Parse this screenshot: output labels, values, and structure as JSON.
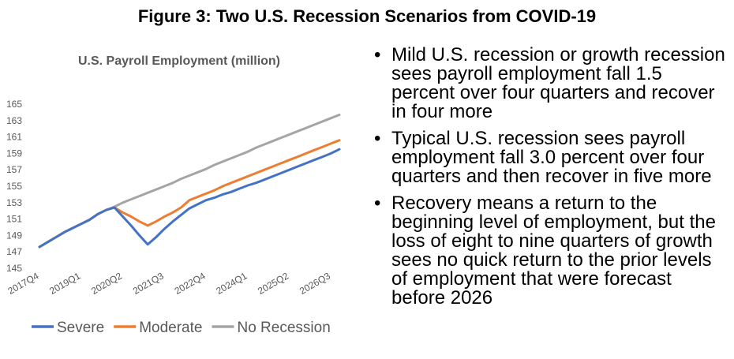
{
  "figure_title": "Figure 3: Two U.S. Recession Scenarios from COVID-19",
  "bullets": [
    "Mild U.S. recession or growth recession sees payroll employment fall 1.5 percent over four quarters and recover in four more",
    "Typical U.S. recession sees payroll employment fall 3.0 percent over four quarters and then recover in five more",
    "Recovery means a return to the beginning level of employment, but the loss of eight to nine quarters of growth sees no quick return to the prior levels of employment that were forecast before 2026"
  ],
  "chart_data": {
    "type": "line",
    "title": "U.S. Payroll Employment (million)",
    "xlabel": "",
    "ylabel": "",
    "ylim": [
      145,
      165
    ],
    "yticks": [
      145,
      147,
      149,
      151,
      153,
      155,
      157,
      159,
      161,
      163,
      165
    ],
    "x": [
      "2017Q4",
      "2018Q1",
      "2018Q2",
      "2018Q3",
      "2018Q4",
      "2019Q1",
      "2019Q2",
      "2019Q3",
      "2019Q4",
      "2020Q1",
      "2020Q2",
      "2020Q3",
      "2020Q4",
      "2021Q1",
      "2021Q2",
      "2021Q3",
      "2021Q4",
      "2022Q1",
      "2022Q2",
      "2022Q3",
      "2022Q4",
      "2023Q1",
      "2023Q2",
      "2023Q3",
      "2023Q4",
      "2024Q1",
      "2024Q2",
      "2024Q3",
      "2024Q4",
      "2025Q1",
      "2025Q2",
      "2025Q3",
      "2025Q4",
      "2026Q1",
      "2026Q2",
      "2026Q3",
      "2026Q4"
    ],
    "xticks": [
      "2017Q4",
      "2019Q1",
      "2020Q2",
      "2021Q3",
      "2022Q4",
      "2024Q1",
      "2025Q2",
      "2026Q3"
    ],
    "grid": false,
    "legend": "bottom",
    "series": [
      {
        "name": "Severe",
        "color": "#4472C4",
        "values": [
          147.6,
          148.2,
          148.8,
          149.4,
          149.9,
          150.4,
          150.9,
          151.6,
          152.1,
          152.4,
          151.3,
          150.2,
          149.0,
          147.9,
          148.8,
          149.8,
          150.7,
          151.5,
          152.3,
          152.8,
          153.3,
          153.6,
          154.0,
          154.3,
          154.7,
          155.1,
          155.4,
          155.8,
          156.2,
          156.6,
          157.0,
          157.4,
          157.8,
          158.2,
          158.6,
          159.0,
          159.5
        ]
      },
      {
        "name": "Moderate",
        "color": "#ED7D31",
        "values": [
          147.6,
          148.2,
          148.8,
          149.4,
          149.9,
          150.4,
          150.9,
          151.6,
          152.1,
          152.4,
          151.8,
          151.3,
          150.7,
          150.2,
          150.7,
          151.3,
          151.8,
          152.4,
          153.3,
          153.7,
          154.1,
          154.5,
          155.0,
          155.4,
          155.8,
          156.2,
          156.6,
          157.0,
          157.4,
          157.8,
          158.2,
          158.6,
          159.0,
          159.4,
          159.8,
          160.2,
          160.6
        ]
      },
      {
        "name": "No Recession",
        "color": "#A5A5A5",
        "values": [
          147.6,
          148.2,
          148.8,
          149.4,
          149.9,
          150.4,
          150.9,
          151.6,
          152.1,
          152.5,
          153.0,
          153.4,
          153.8,
          154.2,
          154.6,
          155.0,
          155.4,
          155.9,
          156.3,
          156.7,
          157.1,
          157.6,
          158.0,
          158.4,
          158.8,
          159.2,
          159.7,
          160.1,
          160.5,
          160.9,
          161.3,
          161.7,
          162.1,
          162.5,
          162.9,
          163.3,
          163.7
        ]
      }
    ]
  }
}
